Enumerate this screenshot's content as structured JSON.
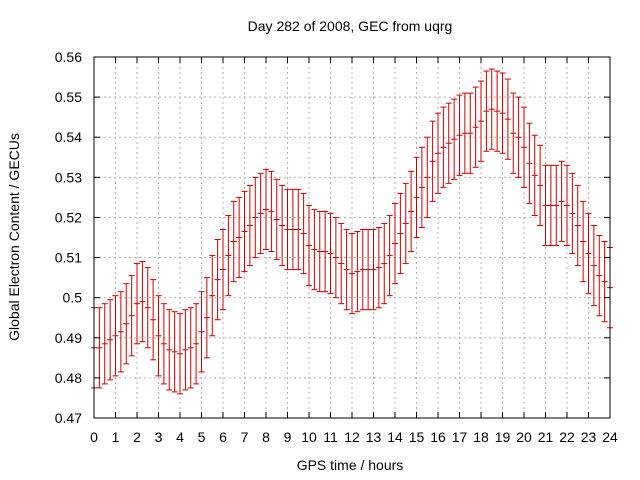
{
  "chart_data": {
    "type": "scatter",
    "title": "Day 282 of 2008, GEC from uqrg",
    "xlabel": "GPS time / hours",
    "ylabel": "Global Electron Content / GECUs",
    "xlim": [
      0,
      24
    ],
    "ylim": [
      0.47,
      0.56
    ],
    "xticks": [
      "0",
      "1",
      "2",
      "3",
      "4",
      "5",
      "6",
      "7",
      "8",
      "9",
      "10",
      "11",
      "12",
      "13",
      "14",
      "15",
      "16",
      "17",
      "18",
      "19",
      "20",
      "21",
      "22",
      "23",
      "24"
    ],
    "yticks": [
      "0.47",
      "0.48",
      "0.49",
      "0.5",
      "0.51",
      "0.52",
      "0.53",
      "0.54",
      "0.55",
      "0.56"
    ],
    "grid": true,
    "error_color": "#cc0000",
    "grid_color": "#b0b0b0",
    "x": [
      0,
      0.25,
      0.5,
      0.75,
      1,
      1.25,
      1.5,
      1.75,
      2,
      2.25,
      2.5,
      2.75,
      3,
      3.25,
      3.5,
      3.75,
      4,
      4.25,
      4.5,
      4.75,
      5,
      5.25,
      5.5,
      5.75,
      6,
      6.25,
      6.5,
      6.75,
      7,
      7.25,
      7.5,
      7.75,
      8,
      8.25,
      8.5,
      8.75,
      9,
      9.25,
      9.5,
      9.75,
      10,
      10.25,
      10.5,
      10.75,
      11,
      11.25,
      11.5,
      11.75,
      12,
      12.25,
      12.5,
      12.75,
      13,
      13.25,
      13.5,
      13.75,
      14,
      14.25,
      14.5,
      14.75,
      15,
      15.25,
      15.5,
      15.75,
      16,
      16.25,
      16.5,
      16.75,
      17,
      17.25,
      17.5,
      17.75,
      18,
      18.25,
      18.5,
      18.75,
      19,
      19.25,
      19.5,
      19.75,
      20,
      20.25,
      20.5,
      20.75,
      21,
      21.25,
      21.5,
      21.75,
      22,
      22.25,
      22.5,
      22.75,
      23,
      23.25,
      23.5,
      23.75,
      24
    ],
    "y": [
      0.4875,
      0.4875,
      0.4885,
      0.4895,
      0.4905,
      0.4915,
      0.4935,
      0.4955,
      0.4985,
      0.499,
      0.4975,
      0.4945,
      0.4905,
      0.4885,
      0.487,
      0.4865,
      0.486,
      0.487,
      0.4875,
      0.4885,
      0.4915,
      0.495,
      0.5005,
      0.5045,
      0.507,
      0.5105,
      0.514,
      0.515,
      0.5165,
      0.518,
      0.52,
      0.521,
      0.522,
      0.5215,
      0.5195,
      0.518,
      0.517,
      0.517,
      0.517,
      0.516,
      0.513,
      0.512,
      0.5115,
      0.5115,
      0.511,
      0.51,
      0.5085,
      0.507,
      0.506,
      0.5065,
      0.507,
      0.507,
      0.507,
      0.5075,
      0.5085,
      0.5105,
      0.5135,
      0.516,
      0.5185,
      0.5215,
      0.525,
      0.5275,
      0.53,
      0.534,
      0.536,
      0.5375,
      0.5385,
      0.5395,
      0.5405,
      0.541,
      0.541,
      0.5425,
      0.544,
      0.5465,
      0.547,
      0.5465,
      0.546,
      0.5445,
      0.541,
      0.54,
      0.5375,
      0.5335,
      0.5305,
      0.528,
      0.523,
      0.523,
      0.523,
      0.524,
      0.523,
      0.521,
      0.518,
      0.514,
      0.511,
      0.508,
      0.5055,
      0.504,
      0.5025
    ],
    "error": [
      0.01,
      0.01,
      0.01,
      0.01,
      0.01,
      0.01,
      0.01,
      0.01,
      0.01,
      0.01,
      0.01,
      0.01,
      0.01,
      0.01,
      0.01,
      0.01,
      0.01,
      0.01,
      0.01,
      0.01,
      0.01,
      0.01,
      0.01,
      0.01,
      0.01,
      0.01,
      0.01,
      0.01,
      0.01,
      0.01,
      0.01,
      0.01,
      0.01,
      0.01,
      0.01,
      0.01,
      0.01,
      0.01,
      0.01,
      0.01,
      0.01,
      0.01,
      0.01,
      0.01,
      0.01,
      0.01,
      0.01,
      0.01,
      0.01,
      0.01,
      0.01,
      0.01,
      0.01,
      0.01,
      0.01,
      0.01,
      0.01,
      0.01,
      0.01,
      0.01,
      0.01,
      0.01,
      0.01,
      0.01,
      0.01,
      0.01,
      0.01,
      0.01,
      0.01,
      0.01,
      0.01,
      0.01,
      0.01,
      0.01,
      0.01,
      0.01,
      0.01,
      0.01,
      0.01,
      0.01,
      0.01,
      0.01,
      0.01,
      0.01,
      0.01,
      0.01,
      0.01,
      0.01,
      0.01,
      0.01,
      0.01,
      0.01,
      0.01,
      0.01,
      0.01,
      0.01,
      0.01
    ]
  }
}
